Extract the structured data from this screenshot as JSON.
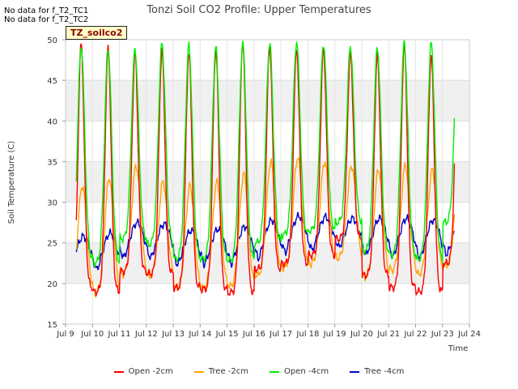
{
  "no_data_messages": [
    "No data for f_T2_TC1",
    "No data for f_T2_TC2"
  ],
  "badge": "TZ_soilco2",
  "chart_data": {
    "type": "line",
    "title": "Tonzi Soil CO2 Profile: Upper Temperatures",
    "xlabel": "Time",
    "ylabel": "Soil Temperature (C)",
    "xlim": [
      9,
      24
    ],
    "ylim": [
      15,
      50
    ],
    "x_ticks": [
      "Jul 9",
      "Jul 10",
      "Jul 11",
      "Jul 12",
      "Jul 13",
      "Jul 14",
      "Jul 15",
      "Jul 16",
      "Jul 17",
      "Jul 18",
      "Jul 19",
      "Jul 20",
      "Jul 21",
      "Jul 22",
      "Jul 23",
      "Jul 24"
    ],
    "y_ticks": [
      15,
      20,
      25,
      30,
      35,
      40,
      45,
      50
    ],
    "grid": true,
    "legend_position": "bottom",
    "series": [
      {
        "name": "Open -2cm",
        "color": "#ff0000",
        "daily_max": [
          49.5,
          48.8,
          48.2,
          48.6,
          48.4,
          48.8,
          49.8,
          49.2,
          48.8,
          48.7,
          48.2,
          48.0,
          49.2,
          48.1,
          49.9
        ],
        "daily_min": [
          19.5,
          19.0,
          21.5,
          21.2,
          19.5,
          19.3,
          18.9,
          21.8,
          22.5,
          23.5,
          25.5,
          21.0,
          19.5,
          19.0,
          22.5
        ]
      },
      {
        "name": "Tree -2cm",
        "color": "#ffa500",
        "daily_max": [
          32.0,
          33.0,
          34.5,
          32.5,
          32.0,
          32.5,
          33.5,
          35.0,
          35.5,
          35.0,
          34.5,
          34.0,
          34.5,
          34.0,
          34.0
        ],
        "daily_min": [
          19.2,
          18.7,
          21.0,
          20.8,
          19.3,
          19.3,
          19.5,
          20.8,
          21.8,
          22.3,
          23.0,
          20.7,
          21.5,
          21.0,
          22.0
        ]
      },
      {
        "name": "Open -4cm",
        "color": "#00ee00",
        "daily_max": [
          49.2,
          49.0,
          48.8,
          49.5,
          49.2,
          49.0,
          49.5,
          49.6,
          49.8,
          49.5,
          49.2,
          49.0,
          49.6,
          49.5,
          49.7
        ],
        "daily_min": [
          23.0,
          22.5,
          25.5,
          24.8,
          23.0,
          23.0,
          22.8,
          25.0,
          26.0,
          26.5,
          27.5,
          24.0,
          23.5,
          23.0,
          27.5
        ]
      },
      {
        "name": "Tree -4cm",
        "color": "#0000cc",
        "daily_max": [
          25.8,
          26.2,
          27.5,
          27.3,
          26.5,
          26.7,
          27.0,
          27.8,
          28.3,
          28.2,
          28.0,
          28.0,
          28.0,
          27.8,
          27.6
        ],
        "daily_min": [
          20.8,
          20.5,
          22.0,
          22.0,
          21.2,
          21.2,
          21.2,
          21.8,
          22.6,
          23.0,
          23.5,
          22.3,
          22.0,
          21.8,
          22.5
        ]
      }
    ]
  }
}
